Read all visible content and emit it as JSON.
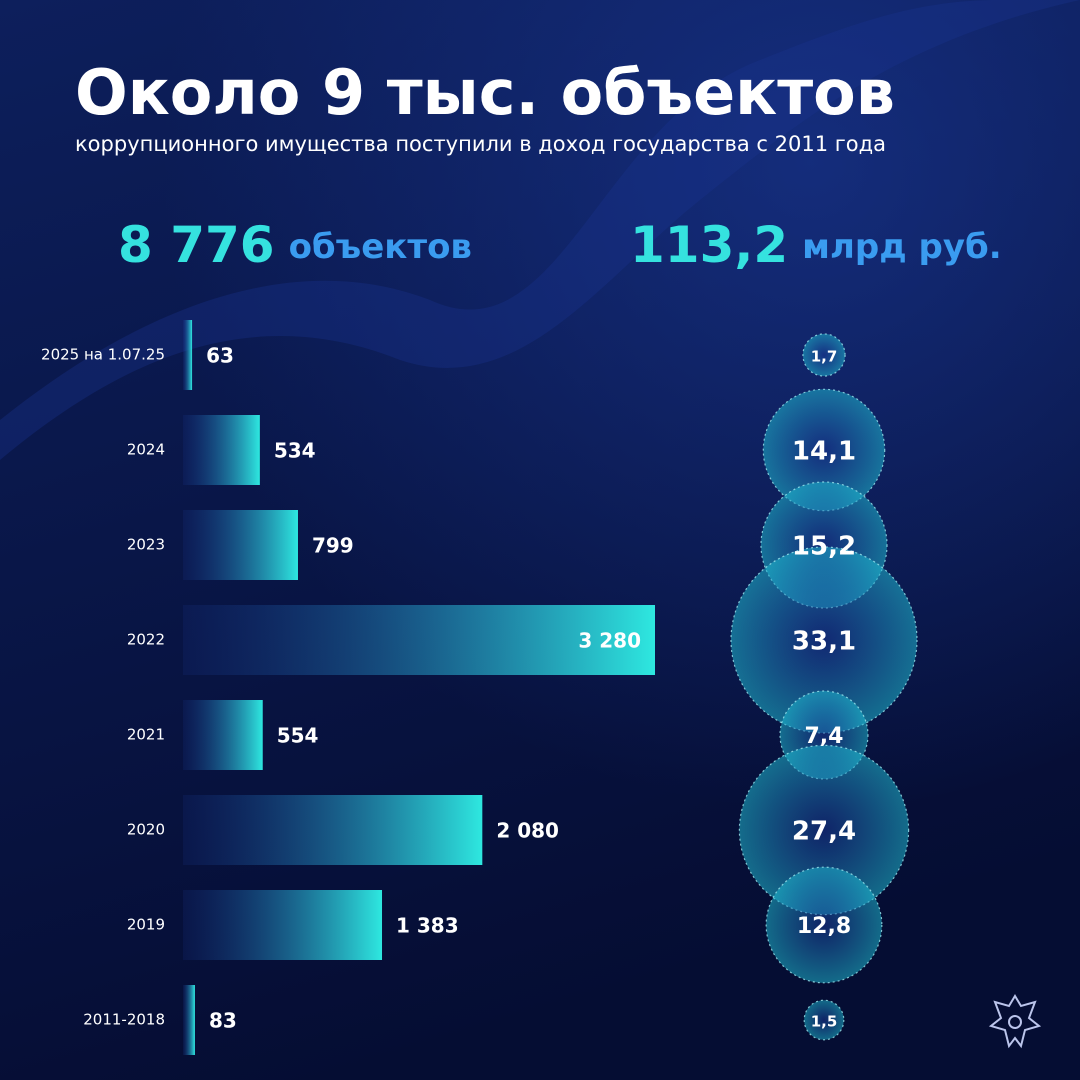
{
  "title": "Около 9 тыс. объектов",
  "subtitle": "коррупционного имущества поступили в доход государства с 2011 года",
  "chart_data": [
    {
      "type": "hbar",
      "title": "8 776",
      "unit": "объектов",
      "categories": [
        "2025 на 1.07.25",
        "2024",
        "2023",
        "2022",
        "2021",
        "2020",
        "2019",
        "2011-2018"
      ],
      "values": [
        63,
        534,
        799,
        3280,
        554,
        2080,
        1383,
        83
      ],
      "value_labels": [
        "63",
        "534",
        "799",
        "3 280",
        "554",
        "2 080",
        "1 383",
        "83"
      ],
      "color": "#2ee8e0"
    },
    {
      "type": "bubble",
      "title": "113,2",
      "unit": "млрд руб.",
      "categories": [
        "2025 на 1.07.25",
        "2024",
        "2023",
        "2022",
        "2021",
        "2020",
        "2019",
        "2011-2018"
      ],
      "values": [
        1.7,
        14.1,
        15.2,
        33.1,
        7.4,
        27.4,
        12.8,
        1.5
      ],
      "value_labels": [
        "1,7",
        "14,1",
        "15,2",
        "33,1",
        "7,4",
        "27,4",
        "12,8",
        "1,5"
      ],
      "color": "#1fb8d0"
    }
  ]
}
